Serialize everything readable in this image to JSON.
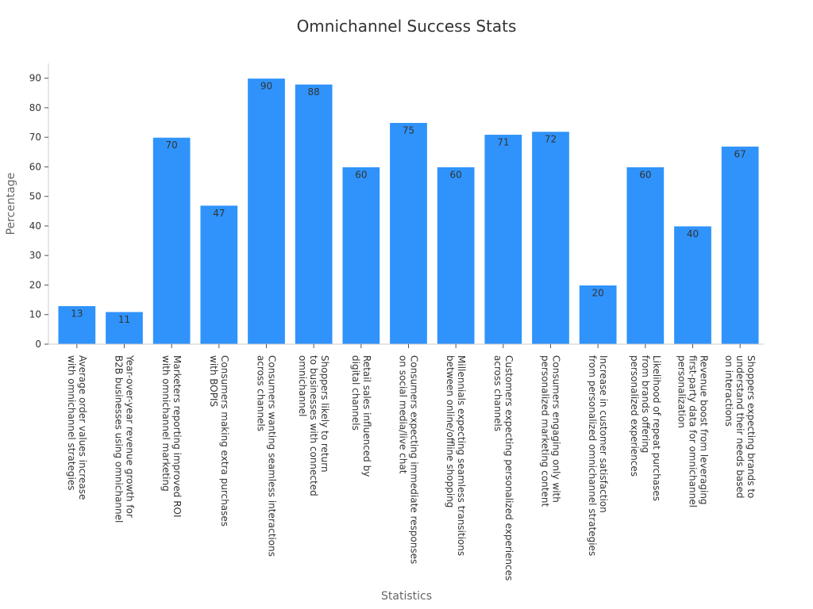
{
  "chart_data": {
    "type": "bar",
    "title": "Omnichannel Success Stats",
    "xlabel": "Statistics",
    "ylabel": "Percentage",
    "ylim": [
      0,
      95
    ],
    "yticks": [
      0,
      10,
      20,
      30,
      40,
      50,
      60,
      70,
      80,
      90
    ],
    "bar_color": "#2f93fb",
    "categories": [
      [
        "Average order values increase",
        "with omnichannel strategies"
      ],
      [
        "Year-over-year revenue growth for",
        "B2B businesses using omnichannel"
      ],
      [
        "Marketers reporting improved ROI",
        "with omnichannel marketing"
      ],
      [
        "Consumers making extra purchases",
        "with BOPIS"
      ],
      [
        "Consumers wanting seamless interactions",
        "across channels"
      ],
      [
        "Shoppers likely to return",
        "to businesses with connected",
        "omnichannel"
      ],
      [
        "Retail sales influenced by",
        "digital channels"
      ],
      [
        "Consumers expecting immediate responses",
        "on social media/live chat"
      ],
      [
        "Millennials expecting seamless transitions",
        "between online/offline shopping"
      ],
      [
        "Customers expecting personalized experiences",
        "across channels"
      ],
      [
        "Consumers engaging only with",
        "personalized marketing content"
      ],
      [
        "Increase in customer satisfaction",
        "from personalized omnichannel strategies"
      ],
      [
        "Likelihood of repeat purchases",
        "from brands offering",
        "personalized experiences"
      ],
      [
        "Revenue boost from leveraging",
        "first-party data for omnichannel",
        "personalization"
      ],
      [
        "Shoppers expecting brands to",
        "understand their needs based",
        "on interactions"
      ]
    ],
    "values": [
      13,
      11,
      70,
      47,
      90,
      88,
      60,
      75,
      60,
      71,
      72,
      20,
      60,
      40,
      67
    ]
  }
}
